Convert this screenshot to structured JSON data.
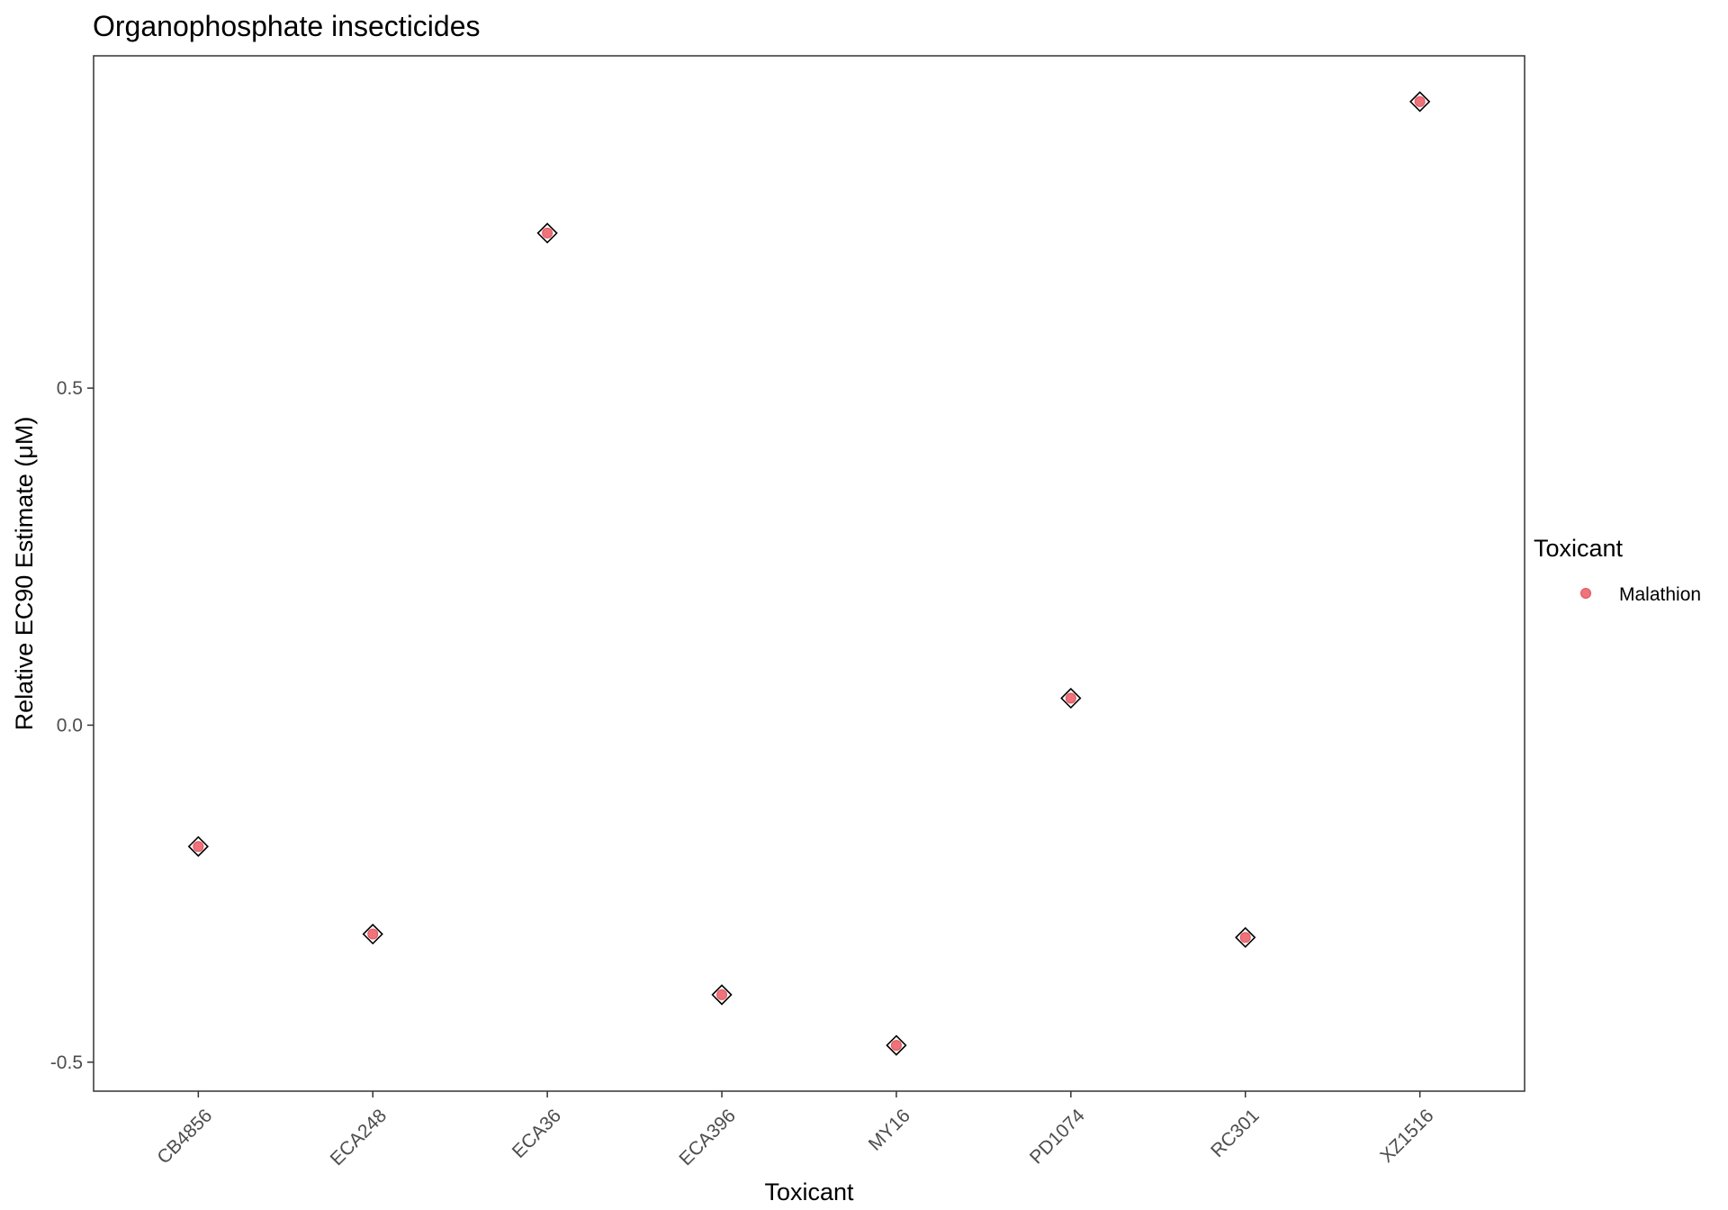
{
  "chart_data": {
    "type": "scatter",
    "title": "Organophosphate insecticides",
    "xlabel": "Toxicant",
    "ylabel": "Relative EC90 Estimate (μM)",
    "categories": [
      "CB4856",
      "ECA248",
      "ECA36",
      "ECA396",
      "MY16",
      "PD1074",
      "RC301",
      "XZ1516"
    ],
    "series": [
      {
        "name": "Malathion",
        "color": "#f0727a",
        "values": [
          -0.18,
          -0.31,
          0.73,
          -0.4,
          -0.475,
          0.04,
          -0.315,
          0.925
        ]
      }
    ],
    "y_ticks": [
      -0.5,
      0.0,
      0.5
    ],
    "y_tick_labels": [
      "-0.5",
      "0.0",
      "0.5"
    ],
    "ylim": [
      -0.543,
      0.993
    ],
    "grid": false,
    "marker_overlay": "open-diamond",
    "legend": {
      "title": "Toxicant",
      "placement": "right"
    }
  }
}
